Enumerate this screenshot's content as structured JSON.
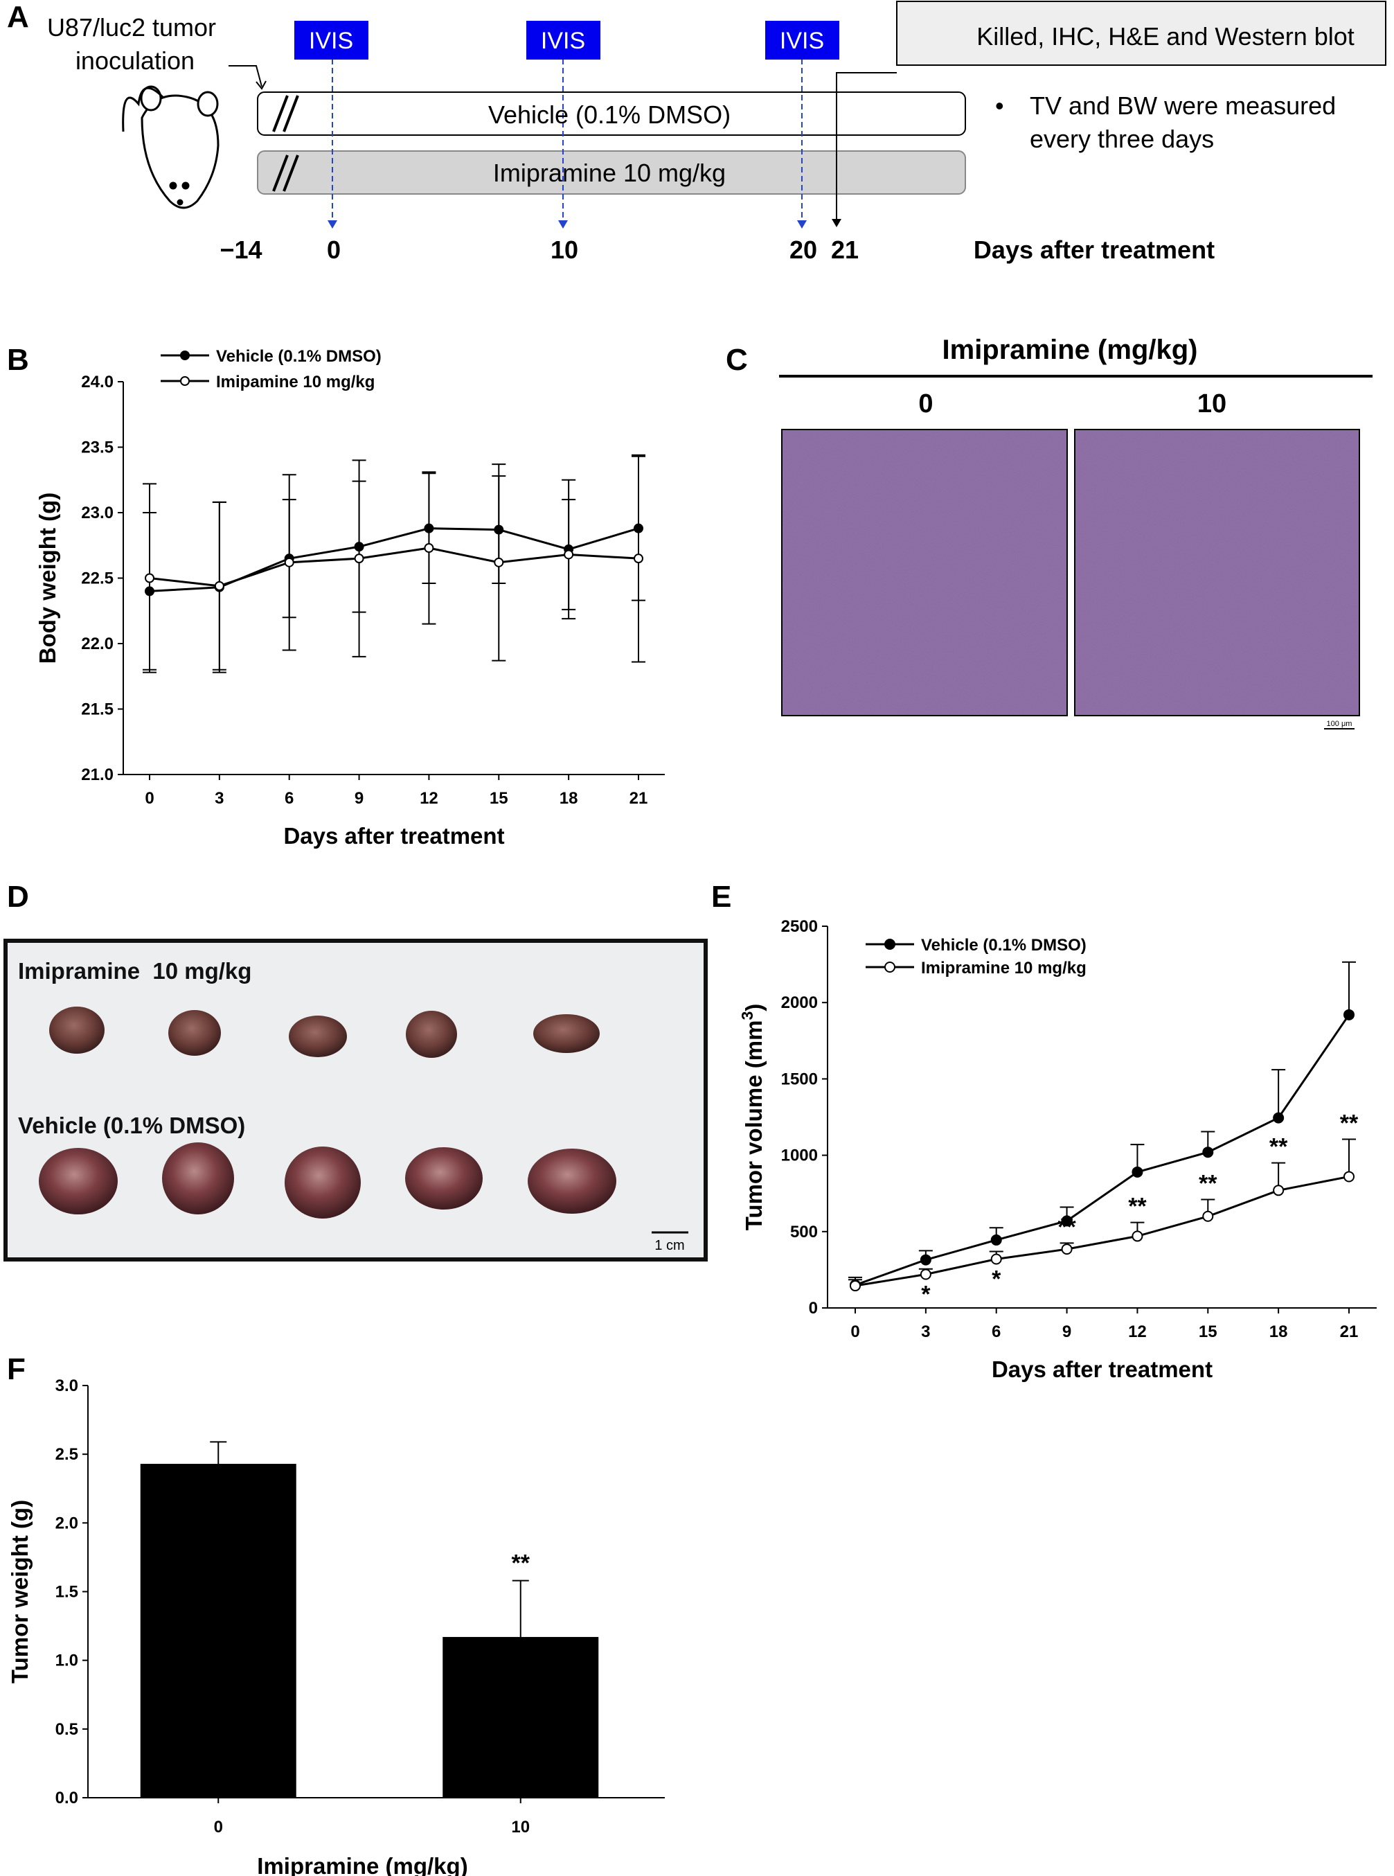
{
  "panels": {
    "a": {
      "letter": "A",
      "inoculation_label_line1": "U87/luc2 tumor",
      "inoculation_label_line2": "inoculation",
      "ivis_labels": [
        "IVIS",
        "IVIS",
        "IVIS"
      ],
      "endpoint_label": "Killed, IHC, H&E and Western blot",
      "vehicle_bar_label": "Vehicle (0.1% DMSO)",
      "imipramine_bar_label": "Imipramine 10 mg/kg",
      "note_bullet": "•",
      "note_line1": "TV and BW were measured",
      "note_line2": "every three days",
      "timeline_ticks": [
        "−14",
        "0",
        "10",
        "20",
        "21"
      ],
      "timeline_axis_label": "Days after treatment",
      "colors": {
        "ivis_box": "#0000ee",
        "ivis_arrow": "#2244cc",
        "vehicle_bar": "#ffffff",
        "imipramine_bar": "#d4d4d4",
        "endpoint_box": "#eeeeee"
      }
    },
    "b": {
      "letter": "B"
    },
    "c": {
      "letter": "C",
      "header": "Imipramine (mg/kg)",
      "col_labels": [
        "0",
        "10"
      ],
      "scale_bar_label": "100 μm",
      "tissue_color": "#8a6a9c"
    },
    "d": {
      "letter": "D",
      "row1_label": "Imipramine  10 mg/kg",
      "row2_label": "Vehicle (0.1% DMSO)",
      "scale_bar_label": "1 cm"
    },
    "e": {
      "letter": "E"
    },
    "f": {
      "letter": "F"
    }
  },
  "chart_data": [
    {
      "id": "B",
      "type": "line",
      "xlabel": "Days after treatment",
      "ylabel": "Body weight (g)",
      "x": [
        0,
        3,
        6,
        9,
        12,
        15,
        18,
        21
      ],
      "xticks": [
        "0",
        "3",
        "6",
        "9",
        "12",
        "15",
        "18",
        "21"
      ],
      "ylim": [
        21.0,
        24.0
      ],
      "yticks": [
        "21.0",
        "21.5",
        "22.0",
        "22.5",
        "23.0",
        "23.5",
        "24.0"
      ],
      "legend": "top-left",
      "grid": false,
      "series": [
        {
          "name": "Vehicle (0.1% DMSO)",
          "marker": "filled",
          "values": [
            22.4,
            22.43,
            22.65,
            22.74,
            22.88,
            22.87,
            22.72,
            22.88
          ],
          "err": [
            0.6,
            0.65,
            0.45,
            0.5,
            0.42,
            0.41,
            0.53,
            0.55
          ]
        },
        {
          "name": "Imipamine 10 mg/kg",
          "marker": "open",
          "values": [
            22.5,
            22.44,
            22.62,
            22.65,
            22.73,
            22.62,
            22.68,
            22.65
          ],
          "err": [
            0.72,
            0.64,
            0.67,
            0.75,
            0.58,
            0.75,
            0.42,
            0.79
          ]
        }
      ]
    },
    {
      "id": "E",
      "type": "line",
      "xlabel": "Days after treatment",
      "ylabel": "Tumor volume (mm",
      "ylabel_sup": "3",
      "ylabel_end": ")",
      "x": [
        0,
        3,
        6,
        9,
        12,
        15,
        18,
        21
      ],
      "xticks": [
        "0",
        "3",
        "6",
        "9",
        "12",
        "15",
        "18",
        "21"
      ],
      "ylim": [
        0,
        2500
      ],
      "yticks": [
        "0",
        "500",
        "1000",
        "1500",
        "2000",
        "2500"
      ],
      "legend": "top-left",
      "grid": false,
      "series": [
        {
          "name": "Vehicle (0.1%  DMSO)",
          "marker": "filled",
          "values": [
            150,
            315,
            445,
            570,
            890,
            1020,
            1245,
            1920
          ],
          "err": [
            50,
            60,
            80,
            90,
            180,
            135,
            315,
            345
          ]
        },
        {
          "name": "Imipramine 10 mg/kg",
          "marker": "open",
          "values": [
            145,
            220,
            320,
            385,
            470,
            600,
            770,
            860
          ],
          "err": [
            40,
            35,
            50,
            40,
            90,
            110,
            180,
            245
          ]
        }
      ],
      "annotations": [
        {
          "x": 3,
          "text": "*",
          "position": "below"
        },
        {
          "x": 6,
          "text": "*",
          "position": "below"
        },
        {
          "x": 9,
          "text": "**",
          "position": "above"
        },
        {
          "x": 12,
          "text": "**",
          "position": "above"
        },
        {
          "x": 15,
          "text": "**",
          "position": "above"
        },
        {
          "x": 18,
          "text": "**",
          "position": "above"
        },
        {
          "x": 21,
          "text": "**",
          "position": "above"
        }
      ]
    },
    {
      "id": "F",
      "type": "bar",
      "xlabel": "Imipramine (mg/kg)",
      "ylabel": "Tumor weight (g)",
      "categories": [
        "0",
        "10"
      ],
      "values": [
        2.43,
        1.17
      ],
      "err": [
        0.16,
        0.41
      ],
      "ylim": [
        0.0,
        3.0
      ],
      "yticks": [
        "0.0",
        "0.5",
        "1.0",
        "1.5",
        "2.0",
        "2.5",
        "3.0"
      ],
      "bar_color": "#000000",
      "grid": false,
      "annotations": [
        {
          "category": "10",
          "text": "**"
        }
      ]
    }
  ]
}
